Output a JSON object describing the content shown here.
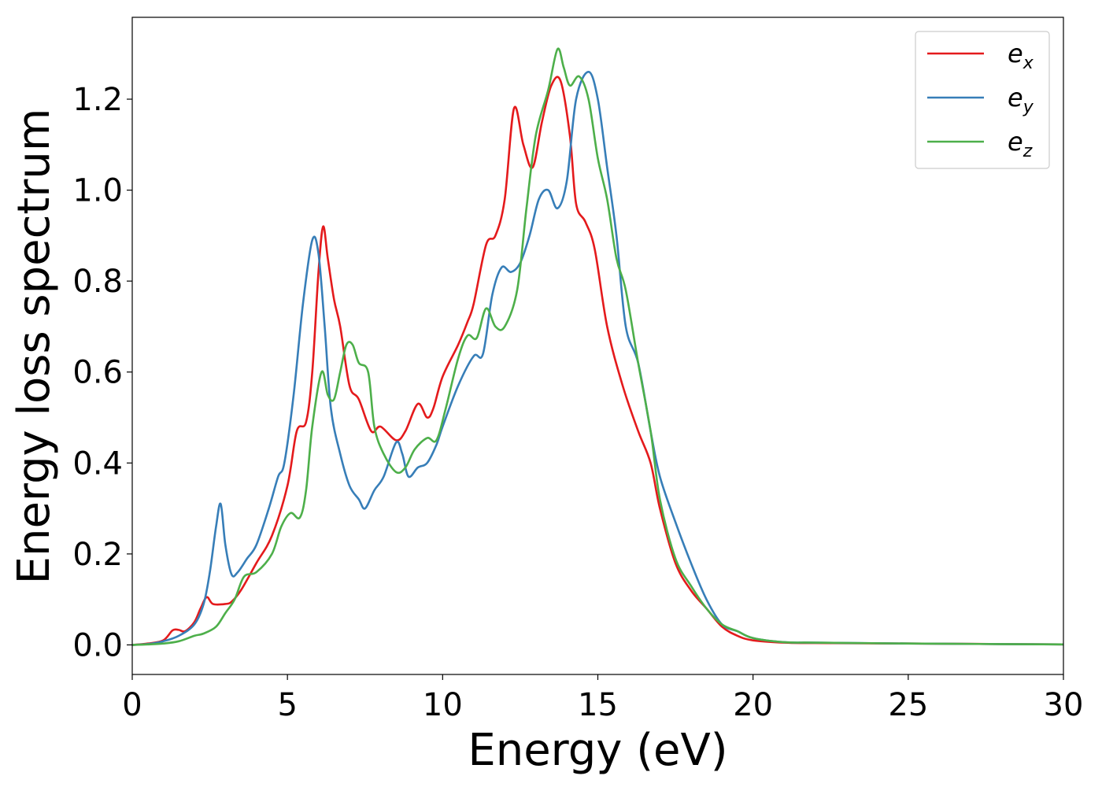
{
  "chart_data": {
    "type": "line",
    "xlabel": "Energy (eV)",
    "ylabel": "Energy loss spectrum",
    "xlim": [
      0,
      30
    ],
    "ylim": [
      -0.065,
      1.38
    ],
    "xticks": [
      0,
      5,
      10,
      15,
      20,
      25,
      30
    ],
    "xtick_labels": [
      "0",
      "5",
      "10",
      "15",
      "20",
      "25",
      "30"
    ],
    "yticks": [
      0.0,
      0.2,
      0.4,
      0.6,
      0.8,
      1.0,
      1.2
    ],
    "ytick_labels": [
      "0.0",
      "0.2",
      "0.4",
      "0.6",
      "0.8",
      "1.0",
      "1.2"
    ],
    "grid": false,
    "legend_position": "top-right",
    "series": [
      {
        "name": "e",
        "subscript": "x",
        "color": "#e41a1c",
        "points": [
          [
            0,
            0
          ],
          [
            0.5,
            0.003
          ],
          [
            1.0,
            0.01
          ],
          [
            1.3,
            0.032
          ],
          [
            1.5,
            0.033
          ],
          [
            1.7,
            0.03
          ],
          [
            2.0,
            0.05
          ],
          [
            2.2,
            0.08
          ],
          [
            2.4,
            0.105
          ],
          [
            2.6,
            0.09
          ],
          [
            3.0,
            0.09
          ],
          [
            3.2,
            0.095
          ],
          [
            3.5,
            0.12
          ],
          [
            4.0,
            0.18
          ],
          [
            4.5,
            0.24
          ],
          [
            5.0,
            0.35
          ],
          [
            5.3,
            0.47
          ],
          [
            5.6,
            0.49
          ],
          [
            5.8,
            0.6
          ],
          [
            6.0,
            0.82
          ],
          [
            6.15,
            0.92
          ],
          [
            6.3,
            0.85
          ],
          [
            6.5,
            0.76
          ],
          [
            6.7,
            0.7
          ],
          [
            7.0,
            0.57
          ],
          [
            7.3,
            0.54
          ],
          [
            7.7,
            0.47
          ],
          [
            8.0,
            0.48
          ],
          [
            8.5,
            0.45
          ],
          [
            8.8,
            0.47
          ],
          [
            9.2,
            0.53
          ],
          [
            9.5,
            0.5
          ],
          [
            9.7,
            0.52
          ],
          [
            10.0,
            0.59
          ],
          [
            10.5,
            0.66
          ],
          [
            10.8,
            0.71
          ],
          [
            11.0,
            0.75
          ],
          [
            11.4,
            0.88
          ],
          [
            11.7,
            0.9
          ],
          [
            12.0,
            0.98
          ],
          [
            12.3,
            1.18
          ],
          [
            12.6,
            1.1
          ],
          [
            12.9,
            1.05
          ],
          [
            13.2,
            1.15
          ],
          [
            13.5,
            1.23
          ],
          [
            13.8,
            1.24
          ],
          [
            14.1,
            1.12
          ],
          [
            14.3,
            0.97
          ],
          [
            14.6,
            0.93
          ],
          [
            14.9,
            0.87
          ],
          [
            15.3,
            0.7
          ],
          [
            15.8,
            0.57
          ],
          [
            16.3,
            0.47
          ],
          [
            16.7,
            0.4
          ],
          [
            17.0,
            0.3
          ],
          [
            17.5,
            0.18
          ],
          [
            18.0,
            0.12
          ],
          [
            18.5,
            0.08
          ],
          [
            19.0,
            0.04
          ],
          [
            19.5,
            0.02
          ],
          [
            20.0,
            0.01
          ],
          [
            21,
            0.005
          ],
          [
            22,
            0.004
          ],
          [
            25,
            0.003
          ],
          [
            30,
            0.001
          ]
        ]
      },
      {
        "name": "e",
        "subscript": "y",
        "color": "#377eb8",
        "points": [
          [
            0,
            0
          ],
          [
            0.5,
            0.002
          ],
          [
            1.0,
            0.008
          ],
          [
            1.5,
            0.02
          ],
          [
            2.0,
            0.045
          ],
          [
            2.3,
            0.09
          ],
          [
            2.5,
            0.16
          ],
          [
            2.7,
            0.26
          ],
          [
            2.85,
            0.31
          ],
          [
            3.0,
            0.22
          ],
          [
            3.2,
            0.155
          ],
          [
            3.4,
            0.16
          ],
          [
            3.7,
            0.19
          ],
          [
            4.0,
            0.22
          ],
          [
            4.4,
            0.3
          ],
          [
            4.7,
            0.37
          ],
          [
            4.9,
            0.4
          ],
          [
            5.2,
            0.55
          ],
          [
            5.5,
            0.75
          ],
          [
            5.8,
            0.89
          ],
          [
            6.0,
            0.86
          ],
          [
            6.2,
            0.7
          ],
          [
            6.4,
            0.52
          ],
          [
            6.7,
            0.42
          ],
          [
            7.0,
            0.35
          ],
          [
            7.3,
            0.32
          ],
          [
            7.5,
            0.3
          ],
          [
            7.8,
            0.34
          ],
          [
            8.1,
            0.37
          ],
          [
            8.5,
            0.445
          ],
          [
            8.7,
            0.42
          ],
          [
            8.9,
            0.37
          ],
          [
            9.2,
            0.39
          ],
          [
            9.5,
            0.4
          ],
          [
            9.8,
            0.44
          ],
          [
            10.0,
            0.48
          ],
          [
            10.5,
            0.57
          ],
          [
            11.0,
            0.635
          ],
          [
            11.3,
            0.64
          ],
          [
            11.6,
            0.77
          ],
          [
            11.9,
            0.83
          ],
          [
            12.2,
            0.82
          ],
          [
            12.5,
            0.84
          ],
          [
            12.8,
            0.9
          ],
          [
            13.1,
            0.98
          ],
          [
            13.4,
            1.0
          ],
          [
            13.7,
            0.96
          ],
          [
            14.0,
            1.02
          ],
          [
            14.3,
            1.2
          ],
          [
            14.7,
            1.26
          ],
          [
            15.0,
            1.2
          ],
          [
            15.3,
            1.05
          ],
          [
            15.6,
            0.9
          ],
          [
            15.9,
            0.7
          ],
          [
            16.3,
            0.62
          ],
          [
            16.7,
            0.47
          ],
          [
            17.0,
            0.37
          ],
          [
            17.5,
            0.27
          ],
          [
            18.0,
            0.18
          ],
          [
            18.5,
            0.1
          ],
          [
            19.0,
            0.045
          ],
          [
            19.5,
            0.03
          ],
          [
            20.0,
            0.015
          ],
          [
            21,
            0.006
          ],
          [
            22,
            0.005
          ],
          [
            25,
            0.003
          ],
          [
            30,
            0.001
          ]
        ]
      },
      {
        "name": "e",
        "subscript": "z",
        "color": "#4daf4a",
        "points": [
          [
            0,
            0
          ],
          [
            0.5,
            0.001
          ],
          [
            1.0,
            0.003
          ],
          [
            1.5,
            0.008
          ],
          [
            2.0,
            0.02
          ],
          [
            2.3,
            0.025
          ],
          [
            2.7,
            0.04
          ],
          [
            3.0,
            0.07
          ],
          [
            3.3,
            0.1
          ],
          [
            3.6,
            0.15
          ],
          [
            4.0,
            0.16
          ],
          [
            4.5,
            0.2
          ],
          [
            4.8,
            0.26
          ],
          [
            5.1,
            0.29
          ],
          [
            5.4,
            0.28
          ],
          [
            5.6,
            0.34
          ],
          [
            5.8,
            0.48
          ],
          [
            6.1,
            0.6
          ],
          [
            6.3,
            0.55
          ],
          [
            6.5,
            0.54
          ],
          [
            6.7,
            0.6
          ],
          [
            6.9,
            0.66
          ],
          [
            7.1,
            0.66
          ],
          [
            7.3,
            0.62
          ],
          [
            7.6,
            0.6
          ],
          [
            7.8,
            0.48
          ],
          [
            8.1,
            0.42
          ],
          [
            8.5,
            0.38
          ],
          [
            8.8,
            0.39
          ],
          [
            9.1,
            0.43
          ],
          [
            9.5,
            0.455
          ],
          [
            9.8,
            0.45
          ],
          [
            10.1,
            0.52
          ],
          [
            10.5,
            0.63
          ],
          [
            10.8,
            0.68
          ],
          [
            11.1,
            0.675
          ],
          [
            11.4,
            0.74
          ],
          [
            11.7,
            0.7
          ],
          [
            12.0,
            0.7
          ],
          [
            12.4,
            0.78
          ],
          [
            12.7,
            0.96
          ],
          [
            13.0,
            1.12
          ],
          [
            13.4,
            1.22
          ],
          [
            13.7,
            1.31
          ],
          [
            13.9,
            1.27
          ],
          [
            14.1,
            1.23
          ],
          [
            14.4,
            1.25
          ],
          [
            14.7,
            1.2
          ],
          [
            15.0,
            1.07
          ],
          [
            15.3,
            0.98
          ],
          [
            15.6,
            0.85
          ],
          [
            15.9,
            0.78
          ],
          [
            16.3,
            0.62
          ],
          [
            16.7,
            0.47
          ],
          [
            17.0,
            0.32
          ],
          [
            17.5,
            0.19
          ],
          [
            18.0,
            0.13
          ],
          [
            18.5,
            0.08
          ],
          [
            19.0,
            0.045
          ],
          [
            19.5,
            0.03
          ],
          [
            20.0,
            0.015
          ],
          [
            21,
            0.006
          ],
          [
            22,
            0.005
          ],
          [
            25,
            0.003
          ],
          [
            30,
            0.001
          ]
        ]
      }
    ]
  }
}
